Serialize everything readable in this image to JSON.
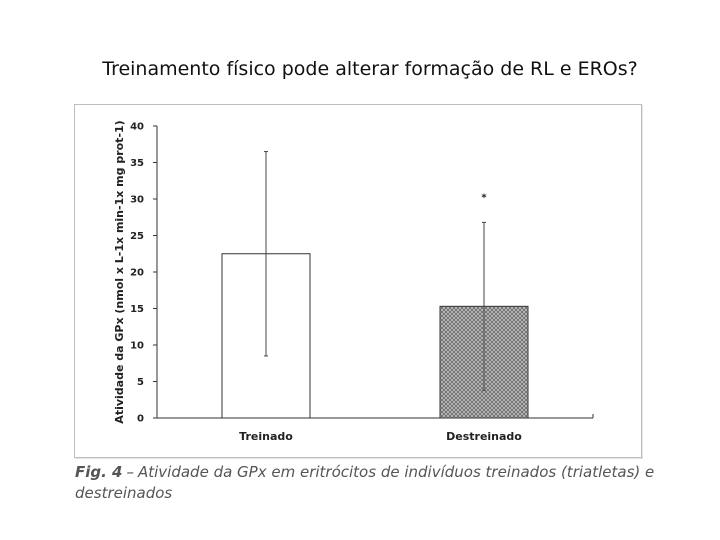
{
  "slide": {
    "title": "Treinamento físico pode alterar formação de RL e EROs?"
  },
  "caption": {
    "label": "Fig. 4",
    "dash": "–",
    "text": "Atividade da GPx em eritrócitos de indivíduos treinados (triatletas) e destreinados"
  },
  "chart_data": {
    "type": "bar",
    "ylabel": "Atividade da GPx (nmol x L-1x min-1x mg prot-1)",
    "ylim": [
      0,
      40
    ],
    "yticks": [
      0,
      5,
      10,
      15,
      20,
      25,
      30,
      35,
      40
    ],
    "categories": [
      "Treinado",
      "Destreinado"
    ],
    "values": [
      22.5,
      15.3
    ],
    "error": [
      14.0,
      11.5
    ],
    "annotations": [
      {
        "category": "Destreinado",
        "text": "*"
      }
    ],
    "styles": {
      "bar_fill": [
        "#ffffff",
        "#9e9e9e"
      ],
      "bar_pattern": [
        "none",
        "dots"
      ],
      "bar_edge": "#333333"
    }
  }
}
